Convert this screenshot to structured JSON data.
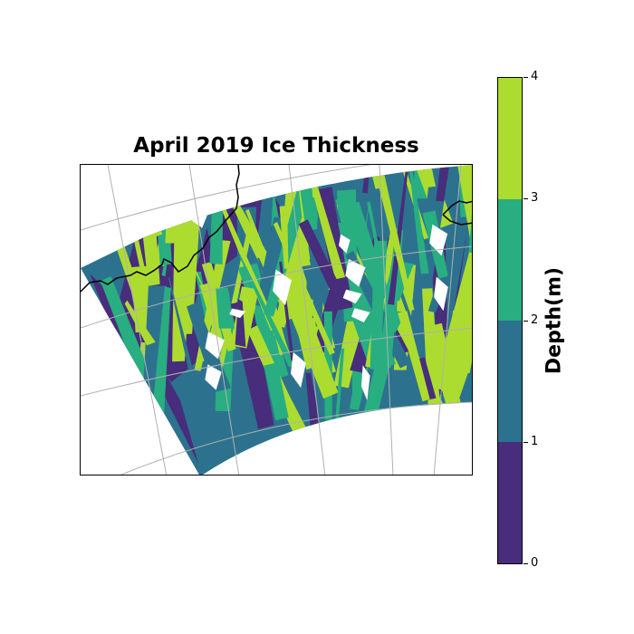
{
  "title": "April 2019 Ice Thickness",
  "colorbar": {
    "label": "Depth(m)",
    "min": 0,
    "max": 4,
    "ticks": [
      "0",
      "1",
      "2",
      "3",
      "4"
    ],
    "bands": [
      {
        "from": 0,
        "to": 1,
        "color": "#472d7b"
      },
      {
        "from": 1,
        "to": 2,
        "color": "#2c728e"
      },
      {
        "from": 2,
        "to": 3,
        "color": "#28ae80"
      },
      {
        "from": 3,
        "to": 4,
        "color": "#addc30"
      }
    ]
  },
  "chart_data": {
    "type": "heatmap",
    "title": "April 2019 Ice Thickness",
    "colorbar_label": "Depth(m)",
    "value_range": [
      0,
      4
    ],
    "levels": [
      0,
      1,
      2,
      3,
      4
    ],
    "projection": "polar stereographic sector with coastlines and lat/lon gridlines",
    "grid": true
  }
}
